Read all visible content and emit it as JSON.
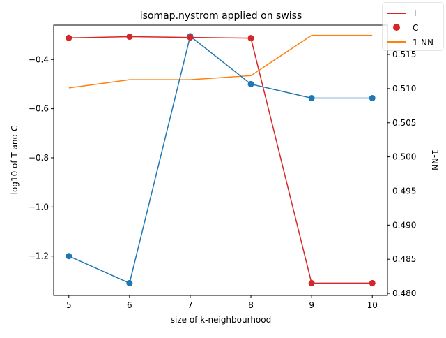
{
  "chart_data": {
    "type": "line",
    "title": "isomap.nystrom applied on swiss",
    "xlabel": "size of k-neighbourhood",
    "ylabel_left": "log10 of T and C",
    "ylabel_right": "1-NN",
    "x": [
      5,
      6,
      7,
      8,
      9,
      10
    ],
    "xlim": [
      4.75,
      10.25
    ],
    "xticks": [
      "5",
      "6",
      "7",
      "8",
      "9",
      "10"
    ],
    "ylim_left": [
      -1.36,
      -0.26
    ],
    "yticks_left": [
      "−0.4",
      "−0.6",
      "−0.8",
      "−1.0",
      "−1.2"
    ],
    "ylim_right": [
      0.4797,
      0.5193
    ],
    "yticks_right": [
      "0.480",
      "0.485",
      "0.490",
      "0.495",
      "0.500",
      "0.505",
      "0.510",
      "0.515"
    ],
    "series": [
      {
        "name": "T",
        "axis": "left",
        "style": "line+markers",
        "color": "#d62728",
        "values": [
          -0.312,
          -0.307,
          -0.31,
          -0.313,
          -1.31,
          -1.31
        ]
      },
      {
        "name": "C",
        "axis": "left",
        "style": "line+markers",
        "color": "#1f77b4",
        "values": [
          -1.2,
          -1.31,
          -0.305,
          -0.5,
          -0.557,
          -0.557
        ]
      },
      {
        "name": "1-NN",
        "axis": "right",
        "style": "line",
        "color": "#ff7f0e",
        "values": [
          0.5101,
          0.5113,
          0.5113,
          0.5119,
          0.5178,
          0.5178
        ]
      }
    ],
    "legend": {
      "position": "top-right",
      "entries": [
        {
          "label": "T",
          "marker": "line",
          "color": "#d62728"
        },
        {
          "label": "C",
          "marker": "dot",
          "color": "#d62728"
        },
        {
          "label": "1-NN",
          "marker": "line",
          "color": "#ff7f0e"
        }
      ]
    },
    "grid": false
  }
}
